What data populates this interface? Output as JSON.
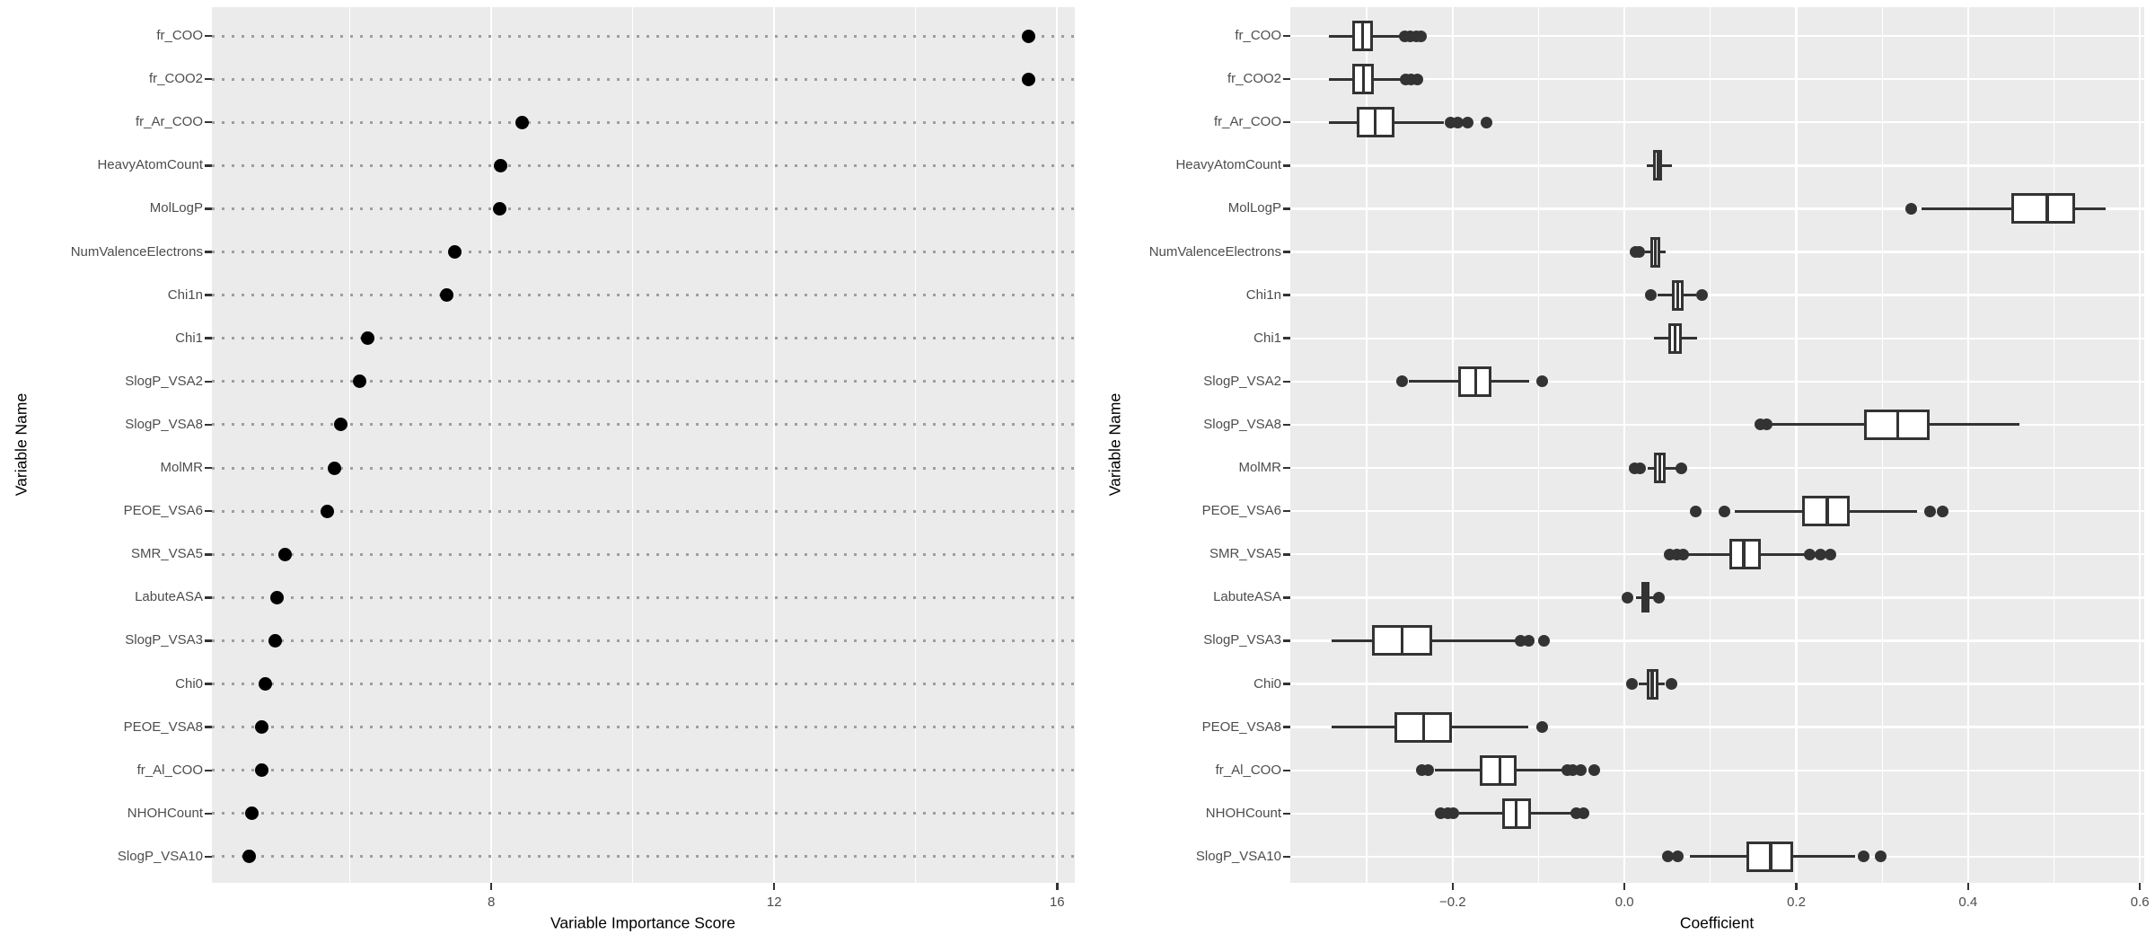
{
  "colors": {
    "panel_bg": "#EBEBEB",
    "gridline": "#FFFFFF",
    "dotted_line": "#9E9E9E",
    "point": "#000000",
    "box_line": "#333333",
    "tick_label": "#4D4D4D",
    "axis_title": "#000000"
  },
  "chart_data": [
    {
      "type": "scatter",
      "subtype": "cleveland-dot-plot",
      "title": "",
      "xlabel": "Variable Importance Score",
      "ylabel": "Variable Name",
      "legend": "none",
      "grid": true,
      "categories": [
        "fr_COO",
        "fr_COO2",
        "fr_Ar_COO",
        "HeavyAtomCount",
        "MolLogP",
        "NumValenceElectrons",
        "Chi1n",
        "Chi1",
        "SlogP_VSA2",
        "SlogP_VSA8",
        "MolMR",
        "PEOE_VSA6",
        "SMR_VSA5",
        "LabuteASA",
        "SlogP_VSA3",
        "Chi0",
        "PEOE_VSA8",
        "fr_Al_COO",
        "NHOHCount",
        "SlogP_VSA10"
      ],
      "values": [
        15.59,
        15.59,
        8.44,
        8.13,
        8.12,
        7.49,
        7.37,
        6.25,
        6.14,
        5.87,
        5.78,
        5.68,
        5.08,
        4.97,
        4.95,
        4.81,
        4.76,
        4.75,
        4.62,
        4.58
      ],
      "xlim": [
        4.05,
        16.25
      ],
      "x_ticks": [
        8,
        12,
        16
      ],
      "x_tick_labels": [
        "8",
        "12",
        "16"
      ],
      "x_minor_ticks": [
        6,
        10,
        14
      ]
    },
    {
      "type": "boxplot",
      "subtype": "horizontal-boxplot",
      "title": "",
      "xlabel": "Coefficient",
      "ylabel": "Variable Name",
      "legend": "none",
      "grid": true,
      "categories": [
        "fr_COO",
        "fr_COO2",
        "fr_Ar_COO",
        "HeavyAtomCount",
        "MolLogP",
        "NumValenceElectrons",
        "Chi1n",
        "Chi1",
        "SlogP_VSA2",
        "SlogP_VSA8",
        "MolMR",
        "PEOE_VSA6",
        "SMR_VSA5",
        "LabuteASA",
        "SlogP_VSA3",
        "Chi0",
        "PEOE_VSA8",
        "fr_Al_COO",
        "NHOHCount",
        "SlogP_VSA10"
      ],
      "xlim": [
        -0.389,
        0.605
      ],
      "x_ticks": [
        -0.2,
        0.0,
        0.2,
        0.4,
        0.6
      ],
      "x_tick_labels": [
        "−0.2",
        "0.0",
        "0.2",
        "0.4",
        "0.6"
      ],
      "x_minor_ticks": [
        -0.3,
        -0.1,
        0.1,
        0.3,
        0.5
      ],
      "boxes": [
        {
          "label": "fr_COO",
          "whislo": -0.344,
          "q1": -0.317,
          "med": -0.305,
          "q3": -0.293,
          "whishi": -0.26,
          "outliers": [
            -0.256,
            -0.249,
            -0.242,
            -0.237
          ]
        },
        {
          "label": "fr_COO2",
          "whislo": -0.344,
          "q1": -0.317,
          "med": -0.304,
          "q3": -0.292,
          "whishi": -0.26,
          "outliers": [
            -0.255,
            -0.248,
            -0.241
          ]
        },
        {
          "label": "fr_Ar_COO",
          "whislo": -0.344,
          "q1": -0.312,
          "med": -0.29,
          "q3": -0.268,
          "whishi": -0.21,
          "outliers": [
            -0.202,
            -0.194,
            -0.183,
            -0.161
          ]
        },
        {
          "label": "HeavyAtomCount",
          "whislo": 0.026,
          "q1": 0.033,
          "med": 0.039,
          "q3": 0.044,
          "whishi": 0.055,
          "outliers": []
        },
        {
          "label": "MolLogP",
          "whislo": 0.346,
          "q1": 0.45,
          "med": 0.492,
          "q3": 0.525,
          "whishi": 0.56,
          "outliers": [
            0.334
          ]
        },
        {
          "label": "NumValenceElectrons",
          "whislo": 0.024,
          "q1": 0.03,
          "med": 0.036,
          "q3": 0.042,
          "whishi": 0.048,
          "outliers": [
            0.013,
            0.017
          ]
        },
        {
          "label": "Chi1n",
          "whislo": 0.038,
          "q1": 0.055,
          "med": 0.062,
          "q3": 0.069,
          "whishi": 0.083,
          "outliers": [
            0.031,
            0.09
          ]
        },
        {
          "label": "Chi1",
          "whislo": 0.034,
          "q1": 0.051,
          "med": 0.059,
          "q3": 0.067,
          "whishi": 0.085,
          "outliers": []
        },
        {
          "label": "SlogP_VSA2",
          "whislo": -0.251,
          "q1": -0.194,
          "med": -0.173,
          "q3": -0.155,
          "whishi": -0.111,
          "outliers": [
            -0.259,
            -0.096
          ]
        },
        {
          "label": "SlogP_VSA8",
          "whislo": 0.171,
          "q1": 0.279,
          "med": 0.318,
          "q3": 0.355,
          "whishi": 0.46,
          "outliers": [
            0.158,
            0.166
          ]
        },
        {
          "label": "MolMR",
          "whislo": 0.027,
          "q1": 0.034,
          "med": 0.041,
          "q3": 0.048,
          "whishi": 0.062,
          "outliers": [
            0.012,
            0.018,
            0.066
          ]
        },
        {
          "label": "PEOE_VSA6",
          "whislo": 0.128,
          "q1": 0.207,
          "med": 0.236,
          "q3": 0.262,
          "whishi": 0.341,
          "outliers": [
            0.083,
            0.116,
            0.356,
            0.37
          ]
        },
        {
          "label": "SMR_VSA5",
          "whislo": 0.074,
          "q1": 0.122,
          "med": 0.139,
          "q3": 0.159,
          "whishi": 0.21,
          "outliers": [
            0.053,
            0.061,
            0.068,
            0.216,
            0.228,
            0.24
          ]
        },
        {
          "label": "LabuteASA",
          "whislo": 0.013,
          "q1": 0.02,
          "med": 0.025,
          "q3": 0.029,
          "whishi": 0.036,
          "outliers": [
            0.004,
            0.04
          ]
        },
        {
          "label": "SlogP_VSA3",
          "whislo": -0.341,
          "q1": -0.294,
          "med": -0.259,
          "q3": -0.224,
          "whishi": -0.127,
          "outliers": [
            -0.121,
            -0.111,
            -0.094
          ]
        },
        {
          "label": "Chi0",
          "whislo": 0.017,
          "q1": 0.026,
          "med": 0.032,
          "q3": 0.04,
          "whishi": 0.047,
          "outliers": [
            0.009,
            0.055
          ]
        },
        {
          "label": "PEOE_VSA8",
          "whislo": -0.341,
          "q1": -0.268,
          "med": -0.234,
          "q3": -0.201,
          "whishi": -0.112,
          "outliers": [
            -0.096
          ]
        },
        {
          "label": "fr_Al_COO",
          "whislo": -0.221,
          "q1": -0.168,
          "med": -0.145,
          "q3": -0.126,
          "whishi": -0.07,
          "outliers": [
            -0.236,
            -0.229,
            -0.067,
            -0.06,
            -0.051,
            -0.035
          ]
        },
        {
          "label": "NHOHCount",
          "whislo": -0.192,
          "q1": -0.142,
          "med": -0.126,
          "q3": -0.109,
          "whishi": -0.058,
          "outliers": [
            -0.214,
            -0.206,
            -0.199,
            -0.056,
            -0.048
          ]
        },
        {
          "label": "SlogP_VSA10",
          "whislo": 0.076,
          "q1": 0.142,
          "med": 0.17,
          "q3": 0.196,
          "whishi": 0.268,
          "outliers": [
            0.051,
            0.062,
            0.278,
            0.298
          ]
        }
      ]
    }
  ]
}
